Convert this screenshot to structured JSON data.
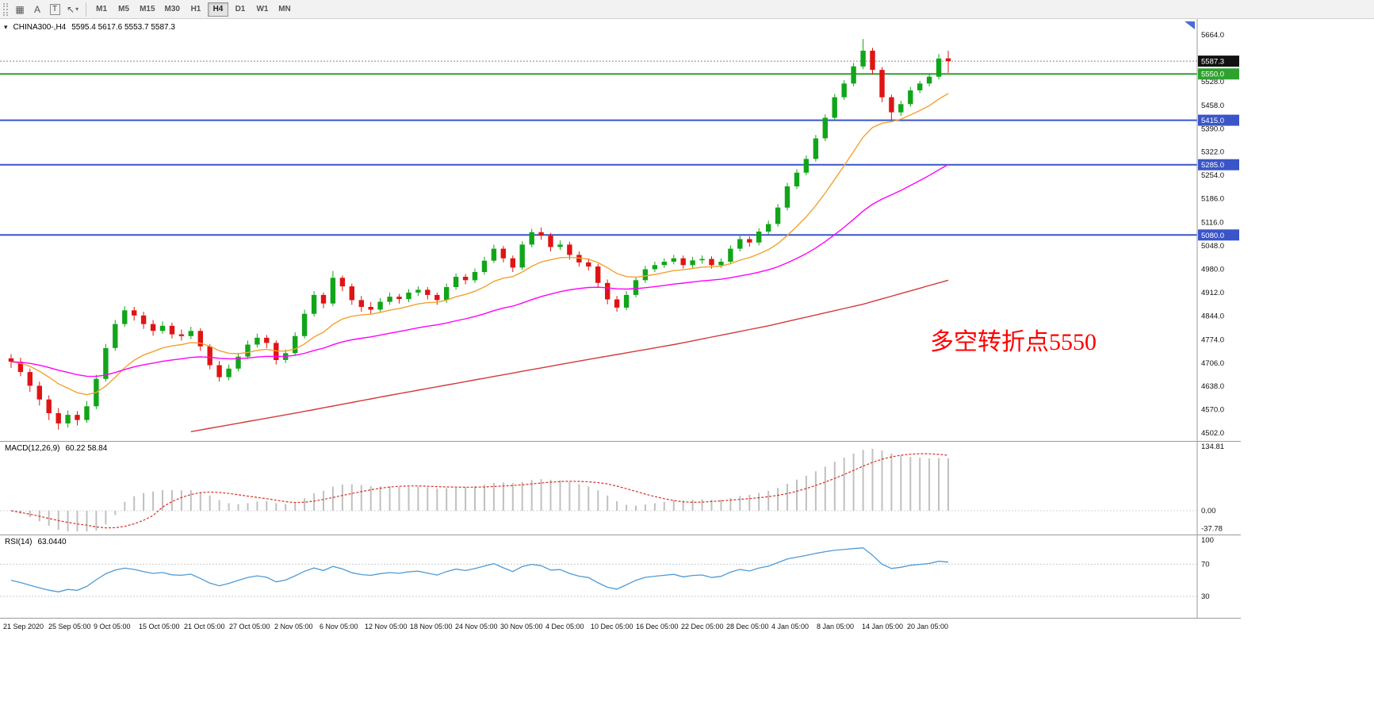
{
  "toolbar": {
    "buttons": {
      "a_label": "A",
      "t_label": "T"
    },
    "timeframes": [
      {
        "label": "M1"
      },
      {
        "label": "M5"
      },
      {
        "label": "M15"
      },
      {
        "label": "M30"
      },
      {
        "label": "H1"
      },
      {
        "label": "H4",
        "active": true
      },
      {
        "label": "D1"
      },
      {
        "label": "W1"
      },
      {
        "label": "MN"
      }
    ]
  },
  "chart": {
    "symbol_header": "CHINA300-,H4",
    "ohlc_text": "5595.4 5617.6 5553.7 5587.3",
    "annotation": {
      "text": "多空转折点5550",
      "color": "#ff0000"
    }
  },
  "chart_data": {
    "type": "candlestick",
    "symbol": "CHINA300-",
    "timeframe": "H4",
    "price_range": [
      4502.0,
      5664.0
    ],
    "y_ticks": [
      5664,
      5528,
      5458,
      5390,
      5322,
      5254,
      5186,
      5116,
      5048,
      4980,
      4912,
      4844,
      4774,
      4706,
      4638,
      4570,
      4502
    ],
    "colors": {
      "up": "#12a51a",
      "down": "#e01414",
      "separator": "#9a9a9a",
      "shift_marker": "#4a6cd4"
    },
    "candles": [
      [
        4720,
        4732,
        4692,
        4710
      ],
      [
        4710,
        4722,
        4668,
        4680
      ],
      [
        4680,
        4690,
        4622,
        4640
      ],
      [
        4640,
        4652,
        4582,
        4600
      ],
      [
        4600,
        4612,
        4540,
        4560
      ],
      [
        4560,
        4575,
        4512,
        4530
      ],
      [
        4530,
        4568,
        4518,
        4555
      ],
      [
        4555,
        4566,
        4524,
        4540
      ],
      [
        4540,
        4595,
        4532,
        4580
      ],
      [
        4580,
        4672,
        4572,
        4660
      ],
      [
        4660,
        4762,
        4652,
        4750
      ],
      [
        4750,
        4832,
        4742,
        4820
      ],
      [
        4820,
        4872,
        4812,
        4860
      ],
      [
        4860,
        4870,
        4830,
        4845
      ],
      [
        4845,
        4856,
        4806,
        4820
      ],
      [
        4820,
        4832,
        4786,
        4800
      ],
      [
        4800,
        4828,
        4792,
        4815
      ],
      [
        4815,
        4824,
        4778,
        4790
      ],
      [
        4790,
        4804,
        4772,
        4785
      ],
      [
        4785,
        4812,
        4776,
        4800
      ],
      [
        4800,
        4808,
        4742,
        4755
      ],
      [
        4755,
        4762,
        4688,
        4700
      ],
      [
        4700,
        4712,
        4652,
        4665
      ],
      [
        4665,
        4702,
        4656,
        4690
      ],
      [
        4690,
        4736,
        4682,
        4725
      ],
      [
        4725,
        4772,
        4718,
        4760
      ],
      [
        4760,
        4792,
        4752,
        4780
      ],
      [
        4780,
        4788,
        4750,
        4765
      ],
      [
        4765,
        4772,
        4702,
        4715
      ],
      [
        4715,
        4746,
        4706,
        4735
      ],
      [
        4735,
        4796,
        4728,
        4785
      ],
      [
        4785,
        4862,
        4778,
        4850
      ],
      [
        4850,
        4916,
        4842,
        4905
      ],
      [
        4905,
        4912,
        4866,
        4880
      ],
      [
        4880,
        4975,
        4872,
        4955
      ],
      [
        4955,
        4962,
        4916,
        4930
      ],
      [
        4930,
        4938,
        4876,
        4890
      ],
      [
        4890,
        4902,
        4856,
        4870
      ],
      [
        4870,
        4884,
        4850,
        4862
      ],
      [
        4862,
        4896,
        4854,
        4885
      ],
      [
        4885,
        4912,
        4876,
        4900
      ],
      [
        4900,
        4908,
        4880,
        4893
      ],
      [
        4893,
        4922,
        4884,
        4912
      ],
      [
        4912,
        4930,
        4902,
        4920
      ],
      [
        4920,
        4928,
        4892,
        4905
      ],
      [
        4905,
        4912,
        4876,
        4890
      ],
      [
        4890,
        4938,
        4882,
        4928
      ],
      [
        4928,
        4968,
        4920,
        4958
      ],
      [
        4958,
        4966,
        4936,
        4948
      ],
      [
        4948,
        4982,
        4940,
        4972
      ],
      [
        4972,
        5016,
        4964,
        5005
      ],
      [
        5005,
        5052,
        4998,
        5040
      ],
      [
        5040,
        5048,
        5000,
        5012
      ],
      [
        5012,
        5020,
        4972,
        4985
      ],
      [
        4985,
        5062,
        4978,
        5052
      ],
      [
        5052,
        5098,
        5044,
        5088
      ],
      [
        5088,
        5102,
        5066,
        5078
      ],
      [
        5078,
        5086,
        5032,
        5045
      ],
      [
        5045,
        5064,
        5036,
        5052
      ],
      [
        5052,
        5060,
        5008,
        5022
      ],
      [
        5022,
        5032,
        4988,
        5000
      ],
      [
        5000,
        5012,
        4976,
        4988
      ],
      [
        4988,
        4996,
        4928,
        4940
      ],
      [
        4940,
        4950,
        4878,
        4892
      ],
      [
        4892,
        4902,
        4856,
        4868
      ],
      [
        4868,
        4916,
        4860,
        4905
      ],
      [
        4905,
        4958,
        4898,
        4948
      ],
      [
        4948,
        4990,
        4940,
        4980
      ],
      [
        4980,
        5002,
        4972,
        4992
      ],
      [
        4992,
        5012,
        4984,
        5002
      ],
      [
        5002,
        5022,
        4994,
        5012
      ],
      [
        5012,
        5020,
        4982,
        4992
      ],
      [
        4992,
        5016,
        4984,
        5006
      ],
      [
        5006,
        5020,
        4996,
        5010
      ],
      [
        5010,
        5018,
        4982,
        4992
      ],
      [
        4992,
        5012,
        4984,
        5002
      ],
      [
        5002,
        5050,
        4994,
        5040
      ],
      [
        5040,
        5078,
        5032,
        5068
      ],
      [
        5068,
        5076,
        5046,
        5058
      ],
      [
        5058,
        5100,
        5050,
        5090
      ],
      [
        5090,
        5122,
        5082,
        5112
      ],
      [
        5112,
        5170,
        5104,
        5160
      ],
      [
        5160,
        5232,
        5152,
        5222
      ],
      [
        5222,
        5272,
        5214,
        5262
      ],
      [
        5262,
        5312,
        5254,
        5302
      ],
      [
        5302,
        5372,
        5294,
        5362
      ],
      [
        5362,
        5432,
        5354,
        5422
      ],
      [
        5422,
        5492,
        5414,
        5482
      ],
      [
        5482,
        5532,
        5474,
        5522
      ],
      [
        5522,
        5582,
        5514,
        5572
      ],
      [
        5572,
        5652,
        5564,
        5618
      ],
      [
        5618,
        5626,
        5548,
        5562
      ],
      [
        5562,
        5570,
        5468,
        5482
      ],
      [
        5482,
        5490,
        5415,
        5438
      ],
      [
        5438,
        5472,
        5428,
        5462
      ],
      [
        5462,
        5512,
        5454,
        5502
      ],
      [
        5502,
        5530,
        5494,
        5522
      ],
      [
        5522,
        5552,
        5514,
        5542
      ],
      [
        5542,
        5608,
        5534,
        5595
      ],
      [
        5595.4,
        5617.6,
        5553.7,
        5587.3
      ]
    ],
    "ma_lines": [
      {
        "name": "ma-fast-orange",
        "color": "#f0a330",
        "period": 13
      },
      {
        "name": "ma-medium-magenta",
        "color": "#ff00ff",
        "period": 40
      },
      {
        "name": "ma-slow-red",
        "color": "#d43a3a",
        "points": [
          [
            19,
            4506
          ],
          [
            30,
            4560
          ],
          [
            40,
            4612
          ],
          [
            50,
            4662
          ],
          [
            60,
            4712
          ],
          [
            70,
            4760
          ],
          [
            80,
            4815
          ],
          [
            90,
            4878
          ],
          [
            99,
            4948
          ]
        ]
      }
    ],
    "hlines": [
      {
        "price": 5550.0,
        "color": "#2fa12f",
        "width": 2,
        "style": "solid",
        "badge": "5550.0"
      },
      {
        "price": 5415.0,
        "color": "#3a55c9",
        "width": 2,
        "style": "solid",
        "badge": "5415.0"
      },
      {
        "price": 5285.0,
        "color": "#3a55c9",
        "width": 2,
        "style": "solid",
        "badge": "5285.0"
      },
      {
        "price": 5080.0,
        "color": "#3a55c9",
        "width": 2,
        "style": "solid",
        "badge": "5080.0"
      },
      {
        "price": 5587.3,
        "color": "#888888",
        "width": 1,
        "style": "dash",
        "badge": "5587.3",
        "badge_color": "#111111"
      }
    ],
    "x_labels": [
      "21 Sep 2020",
      "25 Sep 05:00",
      "9 Oct 05:00",
      "15 Oct 05:00",
      "21 Oct 05:00",
      "27 Oct 05:00",
      "2 Nov 05:00",
      "6 Nov 05:00",
      "12 Nov 05:00",
      "18 Nov 05:00",
      "24 Nov 05:00",
      "30 Nov 05:00",
      "4 Dec 05:00",
      "10 Dec 05:00",
      "16 Dec 05:00",
      "22 Dec 05:00",
      "28 Dec 05:00",
      "4 Jan 05:00",
      "8 Jan 05:00",
      "14 Jan 05:00",
      "20 Jan 05:00"
    ],
    "macd": {
      "label": "MACD(12,26,9)",
      "values_text": "60.22 58.84",
      "fast": 12,
      "slow": 26,
      "signal": 9,
      "range": [
        -37.78,
        134.81
      ],
      "tick_values": [
        134.81,
        0,
        -37.78
      ],
      "y_ticks": [
        "134.81",
        "0.00",
        "-37.78"
      ],
      "bar_color": "#c0c0c0",
      "signal_color": "#d93025"
    },
    "rsi": {
      "label": "RSI(14)",
      "value_text": "63.0440",
      "period": 14,
      "range": [
        0,
        100
      ],
      "levels": [
        70,
        30
      ],
      "tick_values": [
        100,
        70,
        30
      ],
      "y_ticks": [
        "100",
        "70",
        "30"
      ],
      "line_color": "#4f9bd5"
    }
  }
}
